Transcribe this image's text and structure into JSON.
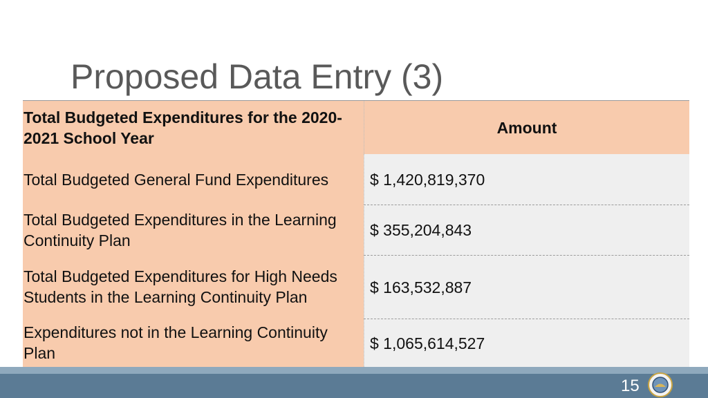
{
  "header": {
    "title": "Proposed Data Entry (3)"
  },
  "table": {
    "columns": [
      "Total Budgeted Expenditures for the 2020-2021 School Year",
      "Amount"
    ],
    "rows": [
      [
        "Total Budgeted General Fund Expenditures",
        "$ 1,420,819,370"
      ],
      [
        "Total Budgeted Expenditures in the Learning Continuity Plan",
        "$ 355,204,843"
      ],
      [
        "Total Budgeted Expenditures for High Needs Students in the Learning Continuity Plan",
        "$ 163,532,887"
      ],
      [
        "Expenditures not in the Learning Continuity Plan",
        "$ 1,065,614,527"
      ]
    ]
  },
  "footer": {
    "page_number": "15"
  }
}
